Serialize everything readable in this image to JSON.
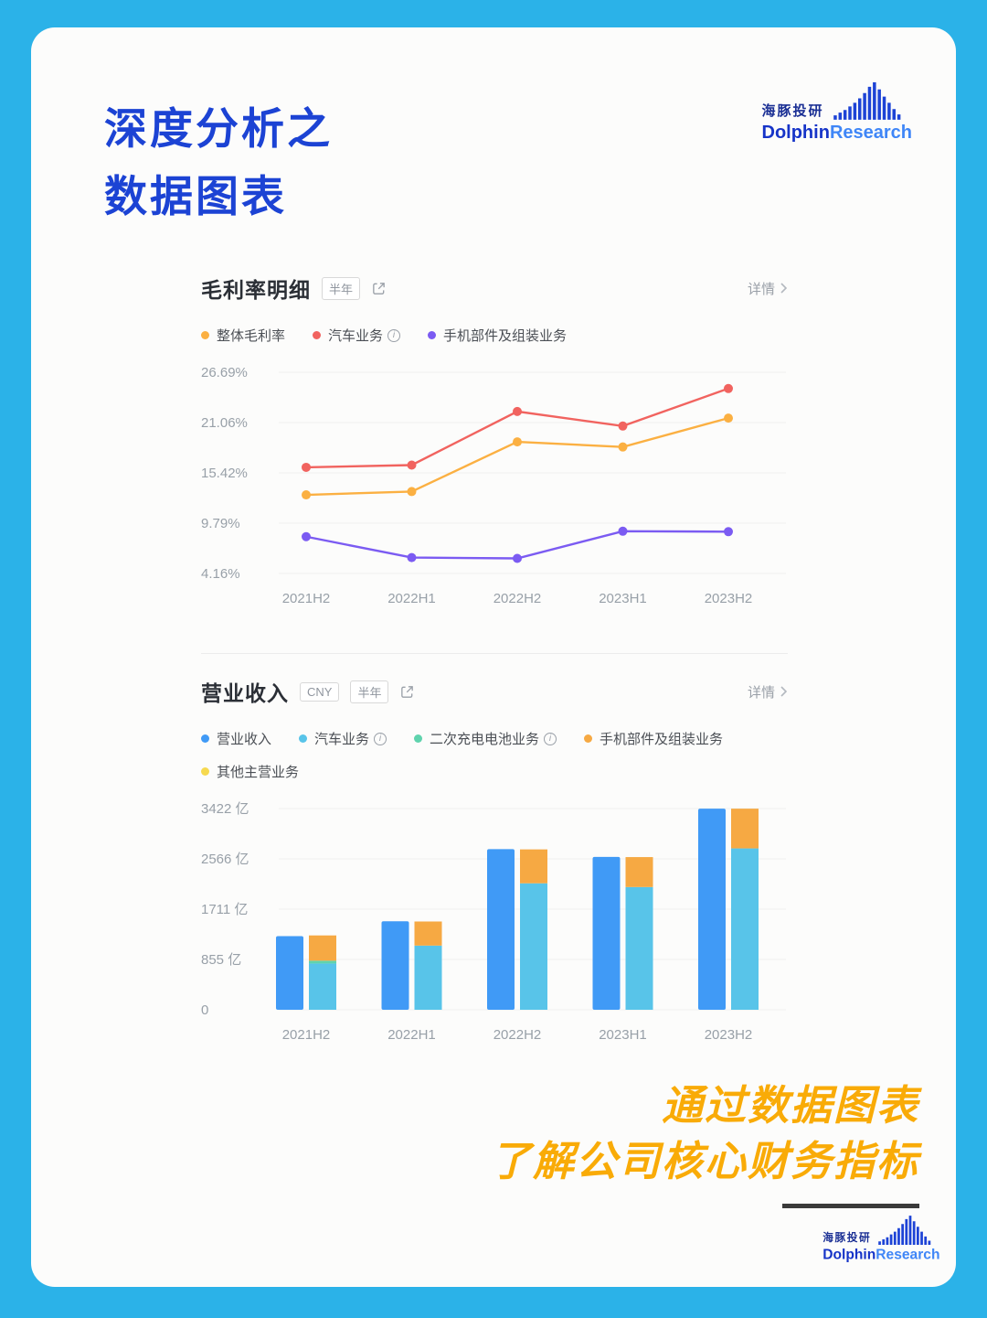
{
  "header": {
    "title_line1": "深度分析之",
    "title_line2": "数据图表"
  },
  "brand": {
    "cn": "海豚投研",
    "en_bold": "Dolphin",
    "en_light": "Research"
  },
  "sections": {
    "margin": {
      "title": "毛利率明细",
      "period_tag": "半年",
      "details_label": "详情"
    },
    "revenue": {
      "title": "营业收入",
      "currency_tag": "CNY",
      "period_tag": "半年",
      "details_label": "详情"
    }
  },
  "footer": {
    "tagline_line1": "通过数据图表",
    "tagline_line2": "了解公司核心财务指标"
  },
  "chart_data": [
    {
      "type": "line",
      "title": "毛利率明细",
      "period": "半年",
      "categories": [
        "2021H2",
        "2022H1",
        "2022H2",
        "2023H1",
        "2023H2"
      ],
      "y_ticks": [
        26.69,
        21.06,
        15.42,
        9.79,
        4.16
      ],
      "y_tick_labels": [
        "26.69%",
        "21.06%",
        "15.42%",
        "9.79%",
        "4.16%"
      ],
      "grid": true,
      "legend_position": "top",
      "series": [
        {
          "name": "整体毛利率",
          "color": "#fbb042",
          "info": false,
          "values": [
            12.97,
            13.34,
            18.9,
            18.33,
            21.56
          ]
        },
        {
          "name": "汽车业务",
          "color": "#f1635f",
          "info": true,
          "values": [
            16.05,
            16.3,
            22.3,
            20.67,
            24.87
          ]
        },
        {
          "name": "手机部件及组装业务",
          "color": "#7b5bf2",
          "info": false,
          "values": [
            8.29,
            5.95,
            5.86,
            8.9,
            8.85
          ]
        }
      ]
    },
    {
      "type": "bar",
      "title": "营业收入",
      "currency": "CNY",
      "period": "半年",
      "unit": "亿",
      "categories": [
        "2021H2",
        "2022H1",
        "2022H2",
        "2023H1",
        "2023H2"
      ],
      "y_ticks": [
        3422,
        2566,
        1711,
        855,
        0
      ],
      "y_tick_labels": [
        "3422 亿",
        "2566 亿",
        "1711 亿",
        "855 亿",
        "0"
      ],
      "grid": true,
      "legend_position": "top",
      "total_series": {
        "name": "营业收入",
        "color": "#409af6",
        "info": false,
        "values": [
          1253,
          1506,
          2734,
          2601,
          3422
        ]
      },
      "stack_series": [
        {
          "name": "汽车业务",
          "color": "#58c4e9",
          "info": true,
          "values": [
            787,
            1092,
            2152,
            2088,
            2746
          ]
        },
        {
          "name": "二次充电电池业务",
          "color": "#5fd3ad",
          "info": true,
          "values": [
            48,
            0,
            0,
            0,
            0
          ]
        },
        {
          "name": "手机部件及组装业务",
          "color": "#f6a943",
          "info": false,
          "values": [
            430,
            410,
            577,
            510,
            676
          ]
        },
        {
          "name": "其他主营业务",
          "color": "#f6d94f",
          "info": false,
          "values": [
            0,
            0,
            0,
            0,
            0
          ]
        }
      ]
    }
  ]
}
